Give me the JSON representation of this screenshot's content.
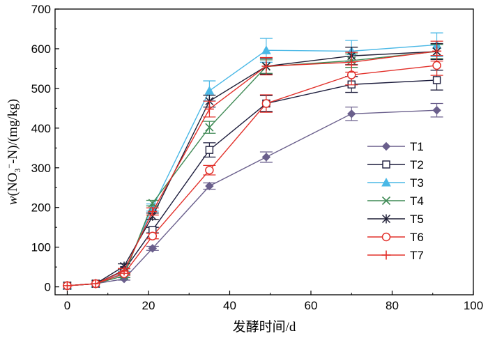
{
  "chart_data": {
    "type": "line",
    "title": "",
    "xlabel": "发酵时间/d",
    "ylabel": "w(NO3−-N)/(mg/kg)",
    "ylabel_parts": {
      "w": "w",
      "open": "(NO",
      "sub": "3",
      "sup": "−",
      "rest": "-N)/(mg/kg)"
    },
    "xlim": [
      -3,
      100
    ],
    "ylim": [
      -20,
      700
    ],
    "xticks": [
      0,
      20,
      40,
      60,
      80,
      100
    ],
    "yticks": [
      0,
      100,
      200,
      300,
      400,
      500,
      600,
      700
    ],
    "grid": false,
    "legend_position": "right",
    "x": [
      0,
      7,
      14,
      21,
      35,
      49,
      70,
      91
    ],
    "series": [
      {
        "name": "T1",
        "color": "#6a5f8c",
        "marker": "diamond",
        "values": [
          3,
          8,
          20,
          97,
          254,
          327,
          436,
          445
        ],
        "errors": [
          0,
          0,
          3,
          5,
          8,
          13,
          17,
          17
        ]
      },
      {
        "name": "T2",
        "color": "#1c1c3c",
        "marker": "square",
        "values": [
          3,
          8,
          42,
          143,
          345,
          462,
          510,
          521
        ],
        "errors": [
          0,
          0,
          4,
          7,
          18,
          20,
          20,
          25
        ]
      },
      {
        "name": "T3",
        "color": "#4ab8e6",
        "marker": "triangle",
        "values": [
          3,
          8,
          35,
          200,
          494,
          596,
          594,
          610
        ],
        "errors": [
          0,
          0,
          4,
          9,
          25,
          30,
          27,
          30
        ]
      },
      {
        "name": "T4",
        "color": "#3f8a55",
        "marker": "x",
        "values": [
          3,
          8,
          28,
          211,
          402,
          555,
          570,
          593
        ],
        "errors": [
          0,
          0,
          4,
          7,
          15,
          17,
          17,
          18
        ]
      },
      {
        "name": "T5",
        "color": "#1e1e35",
        "marker": "star",
        "values": [
          3,
          8,
          52,
          178,
          468,
          556,
          582,
          593
        ],
        "errors": [
          0,
          0,
          6,
          8,
          15,
          20,
          22,
          20
        ]
      },
      {
        "name": "T6",
        "color": "#e2302a",
        "marker": "circle",
        "values": [
          3,
          8,
          33,
          128,
          294,
          462,
          534,
          558
        ],
        "errors": [
          0,
          0,
          4,
          7,
          12,
          22,
          25,
          25
        ]
      },
      {
        "name": "T7",
        "color": "#e2302a",
        "marker": "plus",
        "values": [
          3,
          8,
          40,
          190,
          448,
          556,
          566,
          594
        ],
        "errors": [
          0,
          0,
          6,
          9,
          20,
          22,
          25,
          25
        ]
      }
    ]
  }
}
